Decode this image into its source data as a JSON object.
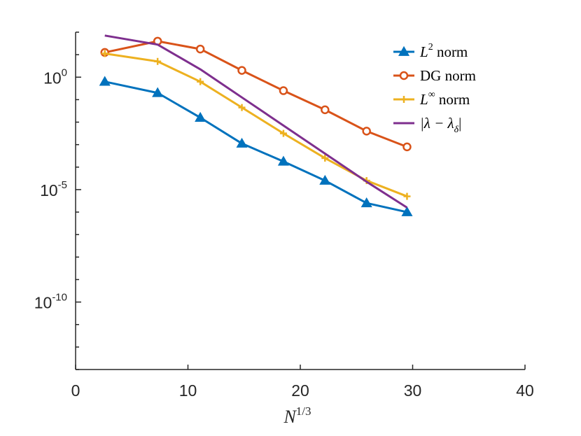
{
  "chart_data": {
    "type": "line",
    "title": "",
    "xlabel_base": "N",
    "xlabel_exp": "1/3",
    "ylabel": "",
    "xlim": [
      0,
      40
    ],
    "ylim_log10": [
      -13,
      2
    ],
    "yscale": "log",
    "x_ticks": [
      "0",
      "10",
      "20",
      "30",
      "40"
    ],
    "x_tick_values": [
      0,
      10,
      20,
      30,
      40
    ],
    "y_ticks": [
      {
        "exp": 0,
        "base": "10",
        "exp_label": "0"
      },
      {
        "exp": -5,
        "base": "10",
        "exp_label": "-5"
      },
      {
        "exp": -10,
        "base": "10",
        "exp_label": "-10"
      }
    ],
    "legend_position": "top-right",
    "series": [
      {
        "name": "L2 norm",
        "label_parts": {
          "pre": "",
          "it": "L",
          "sup": "2",
          "post": " norm"
        },
        "color": "#0072BD",
        "marker": "triangle",
        "x": [
          2.6,
          7.3,
          11.1,
          14.8,
          18.5,
          22.2,
          25.9,
          29.5
        ],
        "log10_y": [
          -0.2,
          -0.7,
          -1.8,
          -2.95,
          -3.75,
          -4.6,
          -5.6,
          -6.0
        ]
      },
      {
        "name": "DG norm",
        "label_parts": {
          "pre": "DG",
          "it": "",
          "sup": "",
          "post": " norm"
        },
        "color": "#D95319",
        "marker": "circle",
        "x": [
          2.6,
          7.3,
          11.1,
          14.8,
          18.5,
          22.2,
          25.9,
          29.5
        ],
        "log10_y": [
          1.1,
          1.6,
          1.25,
          0.3,
          -0.6,
          -1.45,
          -2.4,
          -3.1
        ]
      },
      {
        "name": "L∞ norm",
        "label_parts": {
          "pre": "",
          "it": "L",
          "sup": "∞",
          "post": " norm"
        },
        "color": "#EDB120",
        "marker": "plus",
        "x": [
          2.6,
          7.3,
          11.1,
          14.8,
          18.5,
          22.2,
          25.9,
          29.5
        ],
        "log10_y": [
          1.05,
          0.7,
          -0.2,
          -1.35,
          -2.5,
          -3.6,
          -4.6,
          -5.3
        ]
      },
      {
        "name": "|λ − λδ|",
        "label_parts": {
          "pre": "|λ − λ",
          "it": "",
          "sup": "δ",
          "post": "|"
        },
        "color": "#7E2F8E",
        "marker": "none",
        "x": [
          2.6,
          7.3,
          11.1,
          14.8,
          18.5,
          22.2,
          25.9,
          29.5
        ],
        "log10_y": [
          1.85,
          1.45,
          0.35,
          -0.9,
          -2.15,
          -3.4,
          -4.65,
          -5.8
        ]
      }
    ]
  }
}
